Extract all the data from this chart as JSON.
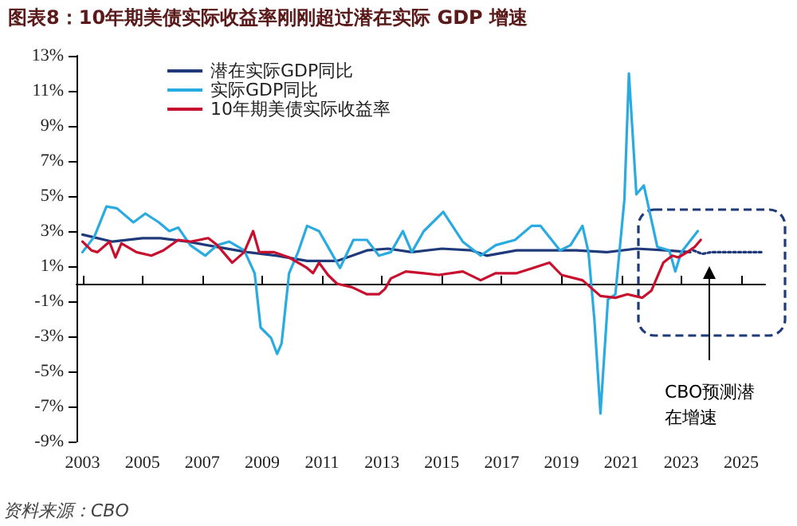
{
  "chart_data": {
    "type": "line",
    "title": "图表8：10年期美债实际收益率刚刚超过潜在实际 GDP 增速",
    "xlim": [
      2002.8,
      2025.8
    ],
    "xticks": [
      2003,
      2005,
      2007,
      2009,
      2011,
      2013,
      2015,
      2017,
      2019,
      2021,
      2023,
      2025
    ],
    "ylim": [
      -9,
      13
    ],
    "yticks": [
      {
        "value": -9,
        "label": "-9%"
      },
      {
        "value": -7,
        "label": "-7%"
      },
      {
        "value": -5,
        "label": "-5%"
      },
      {
        "value": -3,
        "label": "-3%"
      },
      {
        "value": -1,
        "label": "-1%"
      },
      {
        "value": 1,
        "label": "1%"
      },
      {
        "value": 3,
        "label": "3%"
      },
      {
        "value": 5,
        "label": "5%"
      },
      {
        "value": 7,
        "label": "7%"
      },
      {
        "value": 9,
        "label": "9%"
      },
      {
        "value": 11,
        "label": "11%"
      },
      {
        "value": 13,
        "label": "13%"
      }
    ],
    "grid": false,
    "legend": "top left",
    "marker": "none",
    "series": [
      {
        "name": "潜在实际GDP同比",
        "color": "#1f3a7a",
        "line_style": "solid",
        "x": [
          2003,
          2004,
          2005,
          2005.6,
          2006.5,
          2007.5,
          2008.5,
          2009.5,
          2010.5,
          2011.5,
          2012.5,
          2013.2,
          2014,
          2015,
          2016,
          2016.5,
          2017.5,
          2018.5,
          2019.5,
          2020.5,
          2021.5,
          2022.5,
          2023.3
        ],
        "values": [
          2.8,
          2.4,
          2.6,
          2.6,
          2.4,
          2.1,
          1.8,
          1.6,
          1.3,
          1.3,
          1.9,
          2.0,
          1.8,
          2.0,
          1.9,
          1.6,
          1.9,
          1.9,
          1.9,
          1.8,
          2.0,
          1.9,
          1.8
        ]
      },
      {
        "color": "#1f3a7a",
        "line_style": "dotted",
        "x": [
          2023.4,
          2023.7,
          2024,
          2025.75
        ],
        "values": [
          1.9,
          1.7,
          1.8,
          1.8
        ]
      },
      {
        "name": "实际GDP同比",
        "color": "#29abe2",
        "line_style": "solid",
        "x": [
          2003,
          2003.4,
          2003.8,
          2004.15,
          2004.7,
          2005.1,
          2005.55,
          2005.9,
          2006.2,
          2006.6,
          2007.1,
          2007.5,
          2007.9,
          2008.4,
          2008.75,
          2008.95,
          2009.3,
          2009.5,
          2009.65,
          2009.9,
          2010.2,
          2010.5,
          2010.9,
          2011.3,
          2011.6,
          2012.05,
          2012.5,
          2012.9,
          2013.3,
          2013.7,
          2014.0,
          2014.4,
          2015.05,
          2015.7,
          2016.3,
          2016.8,
          2017.45,
          2018.0,
          2018.3,
          2018.95,
          2019.3,
          2019.7,
          2019.9,
          2020.1,
          2020.3,
          2020.55,
          2020.8,
          2021.1,
          2021.25,
          2021.5,
          2021.75,
          2022.2,
          2022.6,
          2022.8,
          2023.0,
          2023.55
        ],
        "values": [
          1.8,
          2.7,
          4.4,
          4.3,
          3.5,
          4.0,
          3.5,
          3.0,
          3.2,
          2.2,
          1.6,
          2.2,
          2.4,
          1.9,
          0.6,
          -2.5,
          -3.1,
          -4.0,
          -3.4,
          0.6,
          1.8,
          3.3,
          3.0,
          1.8,
          0.9,
          2.5,
          2.5,
          1.6,
          1.8,
          3.0,
          1.8,
          3.0,
          4.1,
          2.4,
          1.6,
          2.2,
          2.5,
          3.3,
          3.3,
          1.9,
          2.2,
          3.3,
          1.8,
          -2.1,
          -7.4,
          -0.9,
          -0.6,
          4.8,
          12.0,
          5.1,
          5.6,
          2.1,
          1.9,
          0.7,
          1.8,
          3.0
        ]
      },
      {
        "name": "10年期美债实际收益率",
        "color": "#c8102e",
        "line_style": "solid",
        "x": [
          2003,
          2003.3,
          2003.5,
          2003.9,
          2004.1,
          2004.3,
          2004.8,
          2005.3,
          2005.7,
          2006.2,
          2006.6,
          2007.2,
          2007.5,
          2008.0,
          2008.4,
          2008.7,
          2008.9,
          2009.4,
          2009.9,
          2010.5,
          2010.7,
          2010.9,
          2011.2,
          2011.5,
          2012.0,
          2012.5,
          2012.9,
          2013.1,
          2013.3,
          2013.8,
          2014.4,
          2014.9,
          2015.7,
          2016.3,
          2016.8,
          2017.5,
          2018.05,
          2018.6,
          2019.0,
          2019.7,
          2020.3,
          2020.8,
          2021.2,
          2021.7,
          2022.0,
          2022.4,
          2022.7,
          2022.9,
          2023.2,
          2023.45,
          2023.65
        ],
        "values": [
          2.4,
          1.9,
          1.8,
          2.4,
          1.5,
          2.3,
          1.8,
          1.6,
          1.9,
          2.5,
          2.4,
          2.6,
          2.2,
          1.2,
          1.8,
          3.0,
          1.8,
          1.8,
          1.5,
          0.9,
          0.6,
          1.2,
          0.5,
          0.0,
          -0.2,
          -0.6,
          -0.6,
          -0.3,
          0.3,
          0.7,
          0.6,
          0.5,
          0.7,
          0.2,
          0.6,
          0.6,
          0.9,
          1.2,
          0.5,
          0.2,
          -0.7,
          -0.8,
          -0.6,
          -0.8,
          -0.4,
          1.2,
          1.6,
          1.5,
          1.8,
          2.1,
          2.5
        ]
      }
    ],
    "annotations": [
      "CBO预测潜在增速",
      "资料来源：CBO"
    ]
  }
}
